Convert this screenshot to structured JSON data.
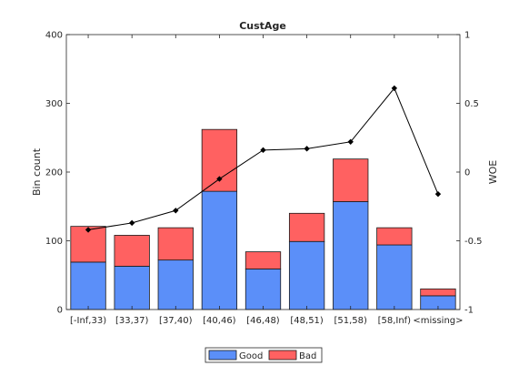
{
  "chart_data": {
    "type": "bar",
    "title": "CustAge",
    "ylabel": "Bin count",
    "y2label": "WOE",
    "categories": [
      "[-Inf,33)",
      "[33,37)",
      "[37,40)",
      "[40,46)",
      "[46,48)",
      "[48,51)",
      "[51,58)",
      "[58,Inf)",
      "<missing>"
    ],
    "ylim": [
      0,
      400
    ],
    "yticks": [
      0,
      100,
      200,
      300,
      400
    ],
    "y2lim": [
      -1,
      1
    ],
    "y2ticks": [
      "-1",
      "-0.5",
      "0",
      "0.5",
      "1"
    ],
    "series": [
      {
        "name": "Good",
        "color": "#5b8ff9",
        "values": [
          69,
          63,
          72,
          172,
          59,
          99,
          157,
          94,
          20
        ]
      },
      {
        "name": "Bad",
        "color": "#ff6161",
        "values": [
          52,
          45,
          47,
          90,
          25,
          41,
          62,
          25,
          10
        ]
      }
    ],
    "woe": {
      "color": "#000000",
      "values": [
        -0.42,
        -0.37,
        -0.28,
        -0.05,
        0.16,
        0.17,
        0.22,
        0.61,
        -0.16
      ]
    },
    "stacked": true,
    "legend_position": "bottom-center"
  }
}
